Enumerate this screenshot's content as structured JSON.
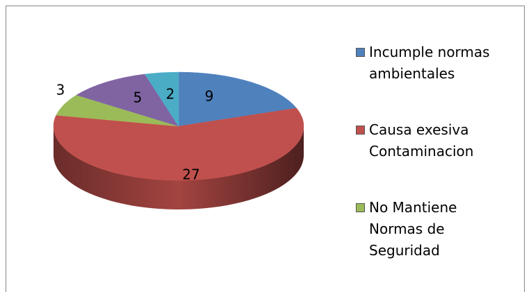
{
  "chart_data": {
    "type": "pie",
    "categories": [
      "Incumple normas ambientales",
      "Causa exesiva Contaminacion",
      "No Mantiene Normas de Seguridad",
      null,
      null
    ],
    "values": [
      9,
      27,
      3,
      5,
      2
    ],
    "colors": [
      "#4f81bd",
      "#c0504d",
      "#9bbb59",
      "#8064a2",
      "#4bacc6"
    ],
    "legend": "right"
  }
}
